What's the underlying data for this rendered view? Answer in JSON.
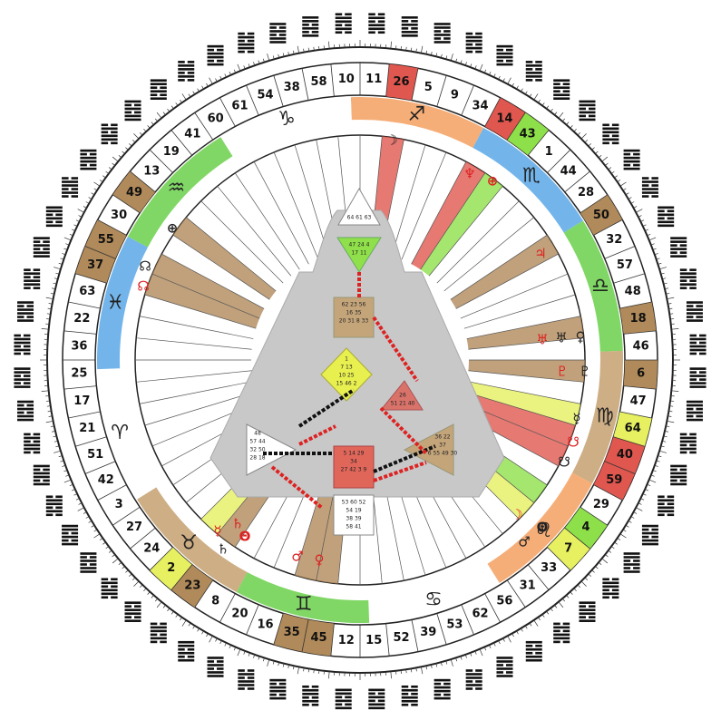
{
  "gates": [
    "11",
    "26",
    "5",
    "9",
    "34",
    "14",
    "43",
    "1",
    "44",
    "28",
    "50",
    "32",
    "57",
    "48",
    "18",
    "46",
    "6",
    "47",
    "64",
    "40",
    "59",
    "29",
    "4",
    "7",
    "33",
    "31",
    "56",
    "62",
    "53",
    "39",
    "52",
    "15",
    "12",
    "45",
    "35",
    "16",
    "20",
    "8",
    "23",
    "2",
    "24",
    "27",
    "3",
    "42",
    "51",
    "21",
    "17",
    "25",
    "36",
    "22",
    "63",
    "37",
    "55",
    "30",
    "49",
    "13",
    "19",
    "41",
    "60",
    "61",
    "54",
    "38",
    "58",
    "10"
  ],
  "signs": [
    "♐",
    "♏",
    "♎",
    "♍",
    "♌",
    "♋",
    "♊",
    "♉",
    "♈",
    "♓",
    "♒",
    "♑"
  ],
  "planets": [
    "☽",
    "♆",
    "⊕",
    "♃",
    "♅",
    "♅",
    "♀",
    "♇",
    "♇",
    "☿",
    "☋",
    "☋",
    "☽",
    "Θ",
    "♂",
    "♄",
    "☿",
    "Θ",
    "♄",
    "♂",
    "♀",
    "⊕",
    "☊",
    "☊"
  ],
  "bodygraph": {
    "head": [
      "64 61 63"
    ],
    "ajna": [
      "47 24 4",
      "17 11"
    ],
    "throat": [
      "62 23 56",
      "16 35",
      "20 31 8 33"
    ],
    "g": [
      "1",
      "7 13",
      "10 25",
      "15 46 2"
    ],
    "heart": [
      "26",
      "51 21 40"
    ],
    "spleen": [
      "48",
      "57 44",
      "32 50",
      "28 18"
    ],
    "solar": [
      "36 22",
      "37",
      "6 55 49 30"
    ],
    "sacral": [
      "5 14 29",
      "34",
      "27 42 3 9"
    ],
    "root": [
      "53 60 52",
      "54 19",
      "38 39",
      "58 41"
    ]
  }
}
